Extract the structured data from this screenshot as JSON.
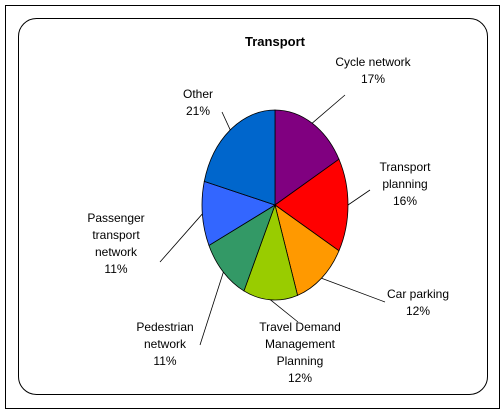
{
  "chart_data": {
    "type": "pie",
    "title": "Transport",
    "categories": [
      "Cycle network",
      "Transport planning",
      "Car parking",
      "Travel Demand Management Planning",
      "Pedestrian network",
      "Passenger transport network",
      "Other"
    ],
    "values": [
      17,
      16,
      12,
      12,
      11,
      11,
      21
    ],
    "value_labels": [
      "17%",
      "16%",
      "12%",
      "12%",
      "11%",
      "11%",
      "21%"
    ],
    "colors": [
      "#800080",
      "#ff0000",
      "#ff9900",
      "#99cc00",
      "#339966",
      "#3366ff",
      "#0066cc"
    ]
  }
}
